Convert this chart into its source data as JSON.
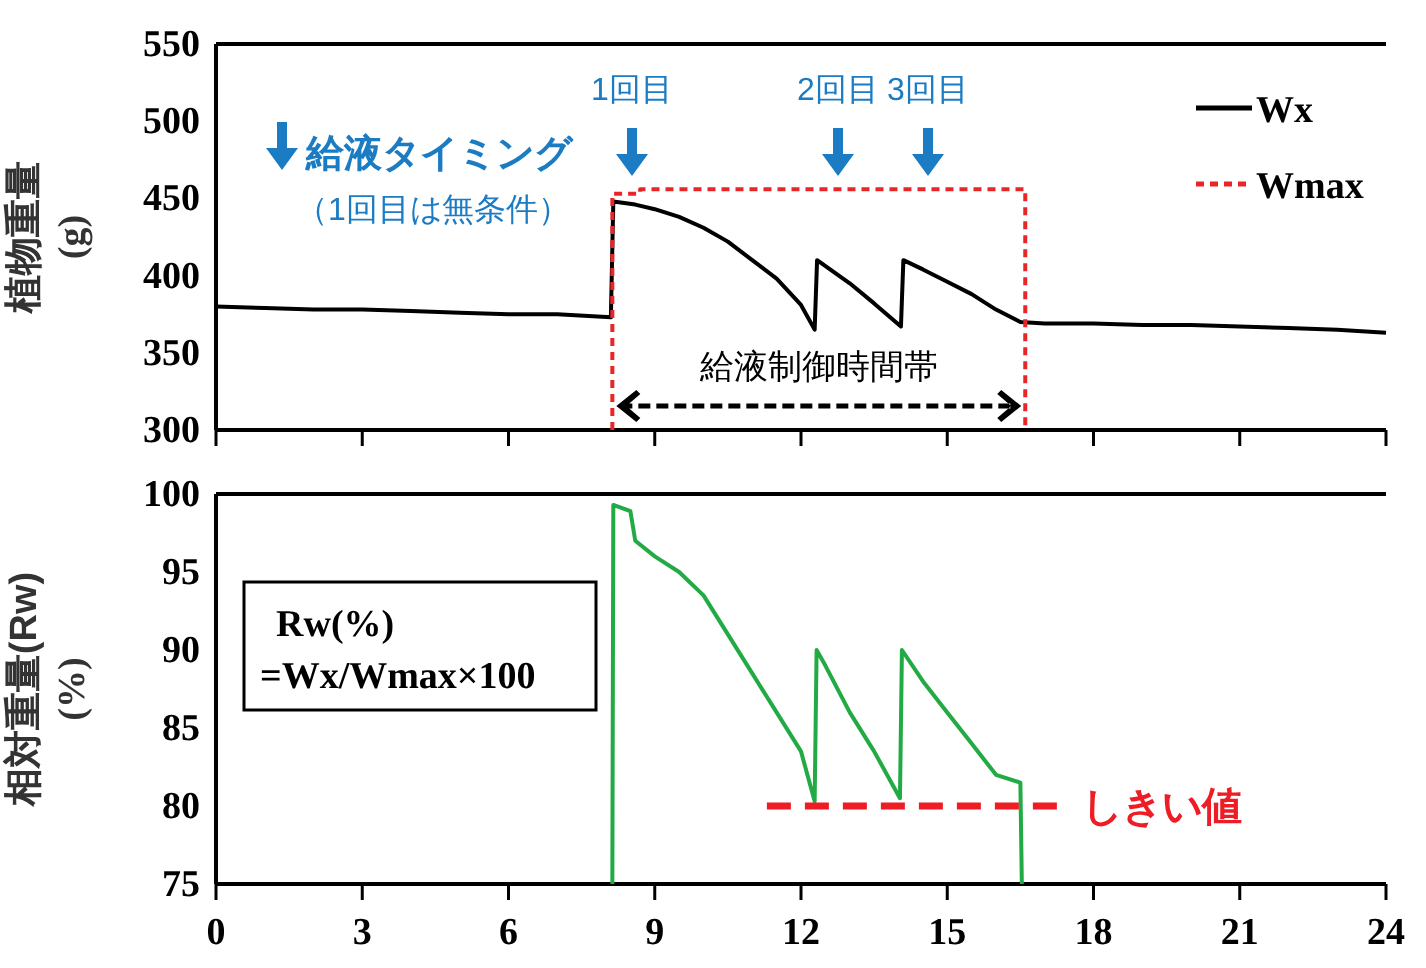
{
  "chart_data": [
    {
      "type": "line",
      "xlim": [
        0,
        24
      ],
      "xticks": [
        0,
        3,
        6,
        9,
        12,
        15,
        18,
        21,
        24
      ],
      "ylim": [
        300,
        550
      ],
      "yticks": [
        300,
        350,
        400,
        450,
        500,
        550
      ],
      "ylabel": "植物重量\n(g)",
      "tick_labels": "y",
      "legend": "top right",
      "series": [
        {
          "name": "Wx",
          "color": "#000000",
          "line_style": "solid",
          "x": [
            0,
            1,
            2,
            3,
            4,
            5,
            6,
            7,
            8.1,
            8.15,
            8.6,
            9,
            9.5,
            10,
            10.5,
            11,
            11.5,
            12,
            12.28,
            12.33,
            13,
            13.5,
            14.05,
            14.1,
            14.5,
            15,
            15.5,
            16,
            16.5,
            17,
            18,
            19,
            20,
            21,
            22,
            23,
            24
          ],
          "values": [
            380,
            379,
            378,
            378,
            377,
            376,
            375,
            375,
            373,
            448,
            446,
            443,
            438,
            431,
            422,
            410,
            398,
            381,
            365,
            410,
            395,
            382,
            367,
            410,
            404,
            396,
            388,
            378,
            370,
            369,
            369,
            368,
            368,
            367,
            366,
            365,
            363
          ]
        },
        {
          "name": "Wmax",
          "color": "#e8262a",
          "line_style": "dashed",
          "x": [
            8.13,
            8.13,
            8.7,
            8.7,
            16.6,
            16.6
          ],
          "values": [
            300,
            453,
            453,
            456,
            456,
            300
          ]
        }
      ],
      "annotations": [
        "給液タイミング",
        "（1回目は無条件）",
        "1回目",
        "2回目",
        "3回目",
        "給液制御時間帯"
      ]
    },
    {
      "type": "line",
      "xlim": [
        0,
        24
      ],
      "xticks": [
        0,
        3,
        6,
        9,
        12,
        15,
        18,
        21,
        24
      ],
      "ylim": [
        75,
        100
      ],
      "yticks": [
        75,
        80,
        85,
        90,
        95,
        100
      ],
      "ylabel": "相対重量(Rw)\n(%)",
      "legend": false,
      "series": [
        {
          "color": "#22aa44",
          "line_style": "solid",
          "x": [
            8.13,
            8.15,
            8.5,
            8.6,
            9,
            9.5,
            10,
            10.5,
            11,
            11.5,
            12,
            12.28,
            12.32,
            12.5,
            13,
            13.5,
            14.03,
            14.07,
            14.5,
            15,
            15.5,
            16,
            16.5,
            16.53
          ],
          "values": [
            75,
            99.3,
            98.9,
            97,
            96,
            95,
            93.5,
            91,
            88.5,
            86,
            83.5,
            80.3,
            90,
            89,
            86,
            83.5,
            80.5,
            90,
            88,
            86,
            84,
            82,
            81.5,
            75
          ]
        },
        {
          "name": "しきい値",
          "color": "#ee1c24",
          "line_style": "dashed",
          "x": [
            11.3,
            17.35
          ],
          "values": [
            80,
            80
          ]
        }
      ],
      "annotations": [
        "Rw(%)",
        "=Wx/Wmax×100"
      ]
    }
  ]
}
